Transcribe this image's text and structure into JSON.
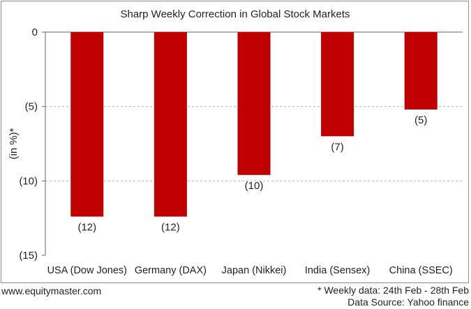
{
  "chart_data": {
    "type": "bar",
    "title": "Sharp Weekly Correction in Global Stock Markets",
    "ylabel": "(in %)*",
    "categories": [
      "USA (Dow Jones)",
      "Germany (DAX)",
      "Japan (Nikkei)",
      "India (Sensex)",
      "China (SSEC)"
    ],
    "values": [
      -12.4,
      -12.4,
      -9.6,
      -7.0,
      -5.2
    ],
    "data_labels": [
      "(12)",
      "(12)",
      "(10)",
      "(7)",
      "(5)"
    ],
    "yticks": [
      0,
      -5,
      -10,
      -15
    ],
    "ytick_labels": [
      "0",
      "(5)",
      "(10)",
      "(15)"
    ],
    "ylim": [
      -15,
      0
    ],
    "grid": true,
    "bar_color": "#c00000"
  },
  "footer": {
    "source_site": "www.equitymaster.com",
    "note": "* Weekly data: 24th Feb - 28th Feb",
    "data_source": "Data Source: Yahoo finance"
  }
}
